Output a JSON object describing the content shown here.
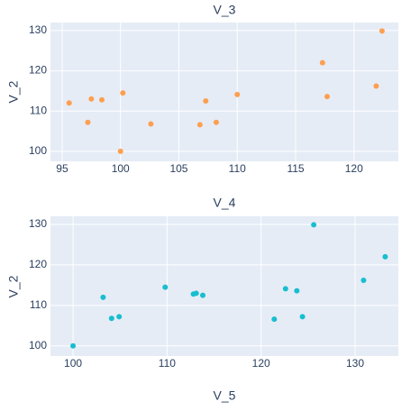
{
  "chart_data": [
    {
      "type": "scatter",
      "title": "V_3",
      "xlabel": "",
      "ylabel": "V_2",
      "xlim": [
        94.0,
        123.8
      ],
      "ylim": [
        97.5,
        132.0
      ],
      "xticks": [
        "95",
        "100",
        "105",
        "110",
        "115",
        "120"
      ],
      "yticks": [
        "100",
        "110",
        "120",
        "130"
      ],
      "color": "#fe9f4f",
      "points": [
        {
          "x": 95.6,
          "y": 112.0
        },
        {
          "x": 97.2,
          "y": 107.2
        },
        {
          "x": 97.5,
          "y": 113.0
        },
        {
          "x": 98.4,
          "y": 112.8
        },
        {
          "x": 100.0,
          "y": 100.0
        },
        {
          "x": 100.2,
          "y": 114.5
        },
        {
          "x": 102.6,
          "y": 106.8
        },
        {
          "x": 106.8,
          "y": 106.6
        },
        {
          "x": 107.3,
          "y": 112.5
        },
        {
          "x": 108.2,
          "y": 107.2
        },
        {
          "x": 110.0,
          "y": 114.1
        },
        {
          "x": 117.3,
          "y": 122.0
        },
        {
          "x": 117.7,
          "y": 113.6
        },
        {
          "x": 121.9,
          "y": 116.2
        },
        {
          "x": 122.4,
          "y": 129.9
        }
      ]
    },
    {
      "type": "scatter",
      "title": "V_4",
      "xlabel": "V_5",
      "ylabel": "V_2",
      "xlim": [
        97.6,
        134.6
      ],
      "ylim": [
        97.5,
        132.0
      ],
      "xticks": [
        "100",
        "110",
        "120",
        "130"
      ],
      "yticks": [
        "100",
        "110",
        "120",
        "130"
      ],
      "color": "#17becf",
      "points": [
        {
          "x": 100.0,
          "y": 100.0
        },
        {
          "x": 103.2,
          "y": 112.0
        },
        {
          "x": 104.1,
          "y": 106.8
        },
        {
          "x": 104.9,
          "y": 107.2
        },
        {
          "x": 109.8,
          "y": 114.5
        },
        {
          "x": 112.8,
          "y": 112.8
        },
        {
          "x": 113.1,
          "y": 113.0
        },
        {
          "x": 113.8,
          "y": 112.5
        },
        {
          "x": 121.4,
          "y": 106.6
        },
        {
          "x": 122.6,
          "y": 114.1
        },
        {
          "x": 123.8,
          "y": 113.6
        },
        {
          "x": 124.4,
          "y": 107.2
        },
        {
          "x": 125.6,
          "y": 129.9
        },
        {
          "x": 130.9,
          "y": 116.2
        },
        {
          "x": 133.2,
          "y": 122.0
        }
      ]
    }
  ]
}
